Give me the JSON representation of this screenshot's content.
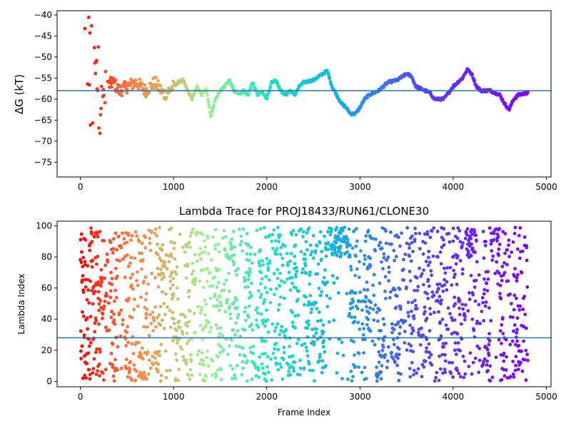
{
  "chart_data": [
    {
      "type": "scatter",
      "title": "",
      "xlabel": "",
      "ylabel": "ΔG (kT)",
      "xlim": [
        -250,
        5050
      ],
      "ylim": [
        -78.5,
        -39
      ],
      "xticks": [
        0,
        1000,
        2000,
        3000,
        4000,
        5000
      ],
      "yticks": [
        -75,
        -70,
        -65,
        -60,
        -55,
        -50,
        -45,
        -40
      ],
      "hline": -58,
      "hline_color": "#1f77b4",
      "colormap": "rainbow (red at frame 0 to violet at frame ~4800)",
      "x_range_of_points": [
        0,
        4800
      ],
      "trace_points": [
        [
          0,
          -40
        ],
        [
          40,
          -45
        ],
        [
          80,
          -52
        ],
        [
          130,
          -58
        ],
        [
          180,
          -55
        ],
        [
          230,
          -62
        ],
        [
          280,
          -57
        ],
        [
          350,
          -56
        ],
        [
          420,
          -58
        ],
        [
          500,
          -57
        ],
        [
          600,
          -56
        ],
        [
          700,
          -58
        ],
        [
          800,
          -56
        ],
        [
          900,
          -59
        ],
        [
          1000,
          -57
        ],
        [
          1050,
          -56
        ],
        [
          1100,
          -55.5
        ],
        [
          1150,
          -58
        ],
        [
          1200,
          -60
        ],
        [
          1250,
          -57
        ],
        [
          1300,
          -59
        ],
        [
          1350,
          -57.5
        ],
        [
          1400,
          -64
        ],
        [
          1450,
          -60
        ],
        [
          1500,
          -58
        ],
        [
          1550,
          -57
        ],
        [
          1600,
          -55.5
        ],
        [
          1650,
          -58
        ],
        [
          1700,
          -59
        ],
        [
          1750,
          -58
        ],
        [
          1800,
          -59
        ],
        [
          1850,
          -56
        ],
        [
          1900,
          -59
        ],
        [
          1950,
          -58
        ],
        [
          2000,
          -60
        ],
        [
          2050,
          -56
        ],
        [
          2100,
          -55.5
        ],
        [
          2150,
          -58
        ],
        [
          2200,
          -59
        ],
        [
          2250,
          -58
        ],
        [
          2300,
          -59
        ],
        [
          2350,
          -57
        ],
        [
          2400,
          -56
        ],
        [
          2500,
          -55.5
        ],
        [
          2600,
          -54
        ],
        [
          2650,
          -53.3
        ],
        [
          2700,
          -57
        ],
        [
          2750,
          -59
        ],
        [
          2800,
          -61
        ],
        [
          2850,
          -62
        ],
        [
          2900,
          -63.5
        ],
        [
          2950,
          -63.5
        ],
        [
          3000,
          -62
        ],
        [
          3050,
          -60
        ],
        [
          3100,
          -59
        ],
        [
          3200,
          -58
        ],
        [
          3300,
          -56
        ],
        [
          3400,
          -55.5
        ],
        [
          3500,
          -54
        ],
        [
          3550,
          -54.5
        ],
        [
          3600,
          -57
        ],
        [
          3700,
          -58
        ],
        [
          3750,
          -58.5
        ],
        [
          3800,
          -60
        ],
        [
          3900,
          -60
        ],
        [
          4000,
          -57
        ],
        [
          4100,
          -55
        ],
        [
          4150,
          -53
        ],
        [
          4200,
          -54
        ],
        [
          4250,
          -57
        ],
        [
          4300,
          -58
        ],
        [
          4400,
          -58
        ],
        [
          4500,
          -59
        ],
        [
          4550,
          -61
        ],
        [
          4600,
          -62.5
        ],
        [
          4650,
          -60
        ],
        [
          4700,
          -59
        ],
        [
          4800,
          -58.5
        ]
      ]
    },
    {
      "type": "scatter",
      "title": "Lambda Trace for PROJ18433/RUN61/CLONE30",
      "xlabel": "Frame Index",
      "ylabel": "Lambda Index",
      "xlim": [
        -250,
        5050
      ],
      "ylim": [
        -3.5,
        103
      ],
      "xticks": [
        0,
        1000,
        2000,
        3000,
        4000,
        5000
      ],
      "yticks": [
        0,
        20,
        40,
        60,
        80,
        100
      ],
      "hline": 28,
      "hline_color": "#1f77b4",
      "colormap": "rainbow (red at frame 0 to violet at frame ~4800)",
      "x_range_of_points": [
        0,
        4800
      ],
      "y_range_of_points": [
        0,
        99
      ],
      "dense_regions": [
        [
          2650,
          2900,
          80,
          99
        ],
        [
          4150,
          4250,
          80,
          99
        ],
        [
          4400,
          4500,
          80,
          99
        ]
      ]
    }
  ]
}
